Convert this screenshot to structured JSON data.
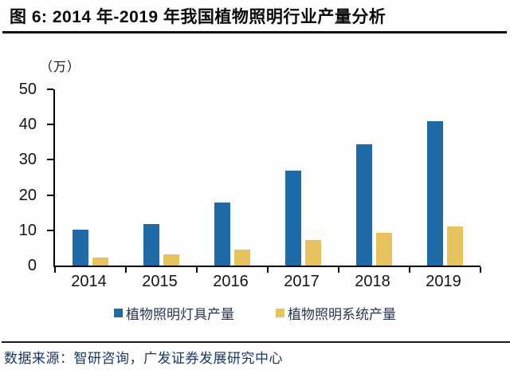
{
  "title": "图 6:  2014 年-2019 年我国植物照明行业产量分析",
  "y_axis_unit": "（万）",
  "source_line": "数据来源：智研咨询，广发证券发展研究中心",
  "colors": {
    "series_lamps_blue": "#1E6BA8",
    "series_systems_yellow": "#E6C35E",
    "axis_black": "#000000",
    "source_text_navy": "#17375E"
  },
  "chart_data": {
    "type": "bar",
    "title": "图 6: 2014 年-2019 年我国植物照明行业产量分析",
    "categories": [
      "2014",
      "2015",
      "2016",
      "2017",
      "2018",
      "2019"
    ],
    "series": [
      {
        "name": "植物照明灯具产量",
        "color": "#1E6BA8",
        "values": [
          10.2,
          11.8,
          17.9,
          27.0,
          34.5,
          41.0
        ]
      },
      {
        "name": "植物照明系统产量",
        "color": "#E6C35E",
        "values": [
          2.3,
          3.1,
          4.5,
          7.2,
          9.2,
          11.0
        ]
      }
    ],
    "xlabel": "",
    "ylabel": "（万）",
    "ylim": [
      0,
      50
    ],
    "yticks": [
      0,
      10,
      20,
      30,
      40,
      50
    ],
    "grid": false,
    "legend_position": "bottom"
  }
}
